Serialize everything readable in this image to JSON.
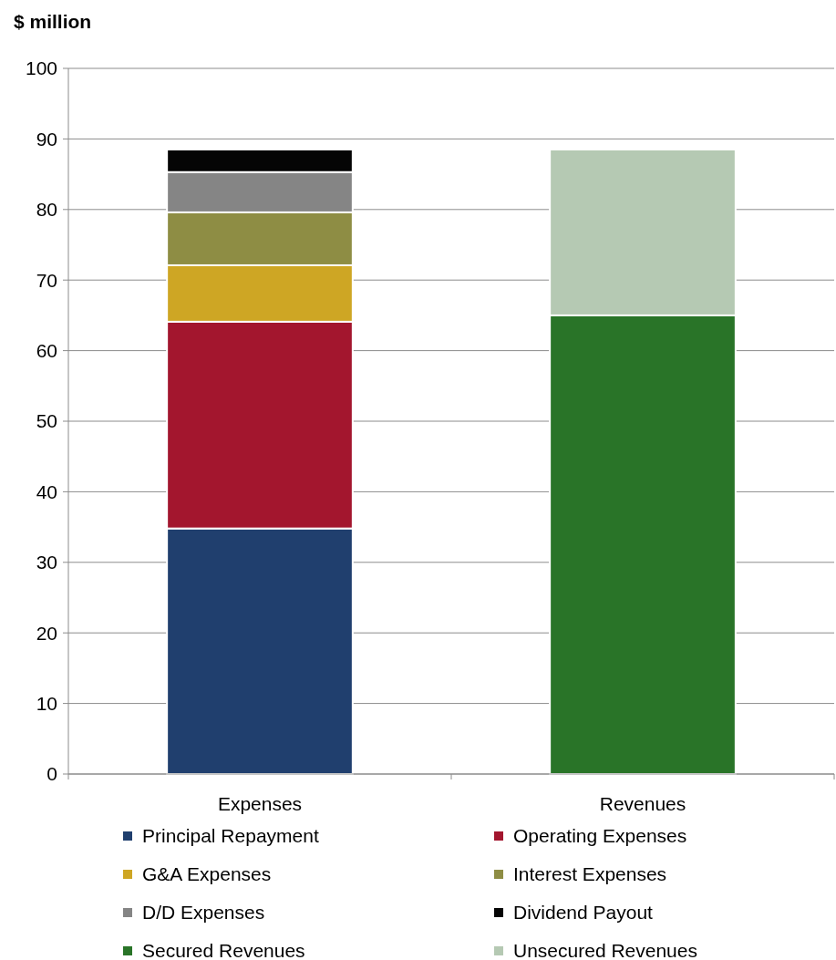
{
  "chart_data": {
    "type": "bar",
    "stacked": true,
    "ylabel": "$ million",
    "categories": [
      "Expenses",
      "Revenues"
    ],
    "ylim": [
      0,
      100
    ],
    "yticks": [
      0,
      10,
      20,
      30,
      40,
      50,
      60,
      70,
      80,
      90,
      100
    ],
    "grid": "y",
    "legend": "bottom",
    "series": [
      {
        "name": "Principal Repayment",
        "color": "#203f6e",
        "values": [
          34.8,
          null
        ]
      },
      {
        "name": "Operating Expenses",
        "color": "#a3162e",
        "values": [
          29.3,
          null
        ]
      },
      {
        "name": "G&A Expenses",
        "color": "#cea624",
        "values": [
          8.0,
          null
        ]
      },
      {
        "name": "Interest Expenses",
        "color": "#8e8d44",
        "values": [
          7.5,
          null
        ]
      },
      {
        "name": "D/D Expenses",
        "color": "#858585",
        "values": [
          5.7,
          null
        ]
      },
      {
        "name": "Dividend Payout",
        "color": "#050505",
        "values": [
          3.2,
          null
        ]
      },
      {
        "name": "Secured Revenues",
        "color": "#297428",
        "values": [
          null,
          65.0
        ]
      },
      {
        "name": "Unsecured Revenues",
        "color": "#b5c9b3",
        "values": [
          null,
          23.5
        ]
      }
    ]
  }
}
